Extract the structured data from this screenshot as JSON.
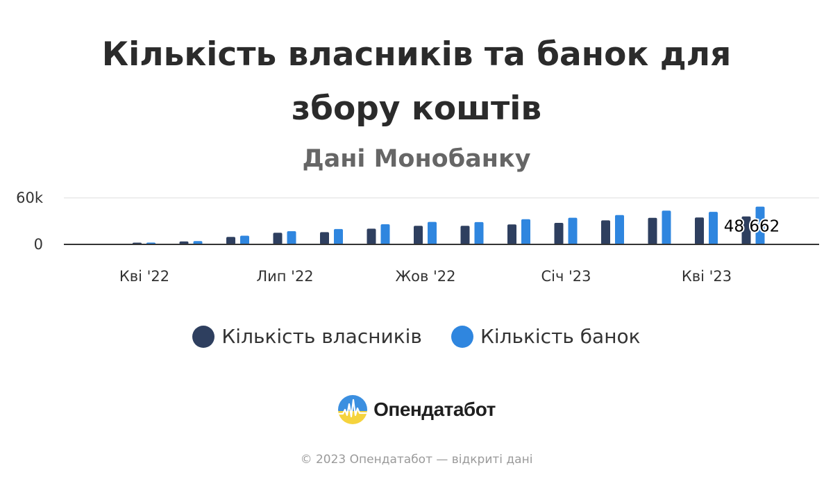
{
  "header": {
    "title_line1": "Кількість власників та банок для",
    "title_line2": "збору коштів",
    "subtitle": "Дані Монобанку"
  },
  "chart_data": {
    "type": "bar",
    "title": "Кількість власників та банок для збору коштів",
    "subtitle": "Дані Монобанку",
    "xlabel": "",
    "ylabel": "",
    "ylim": [
      0,
      60000
    ],
    "yticks": [
      {
        "value": 0,
        "label": "0"
      },
      {
        "value": 60000,
        "label": "60k"
      }
    ],
    "xticks": [
      {
        "index": 1,
        "label": "Кві '22"
      },
      {
        "index": 4,
        "label": "Лип '22"
      },
      {
        "index": 7,
        "label": "Жов '22"
      },
      {
        "index": 10,
        "label": "Січ '23"
      },
      {
        "index": 13,
        "label": "Кві '23"
      }
    ],
    "categories_count": 15,
    "grid": true,
    "legend_position": "bottom",
    "series": [
      {
        "name": "Кількість власників",
        "color": "#2e3f5f",
        "values": [
          null,
          2200,
          3800,
          9600,
          15000,
          15800,
          20300,
          24000,
          24000,
          25800,
          27800,
          31000,
          34300,
          34700,
          36000
        ]
      },
      {
        "name": "Кількість банок",
        "color": "#2f86df",
        "values": [
          null,
          2400,
          4200,
          11200,
          17000,
          19800,
          26000,
          29000,
          28800,
          32500,
          34400,
          37800,
          43500,
          42000,
          48662
        ]
      }
    ],
    "data_labels": [
      {
        "series": 1,
        "index": 14,
        "label": "48 662"
      }
    ]
  },
  "legend": {
    "items": [
      {
        "label": "Кількість власників",
        "color": "#2e3f5f"
      },
      {
        "label": "Кількість банок",
        "color": "#2f86df"
      }
    ]
  },
  "brand": {
    "name": "Опендатабот",
    "icon": "opendatabot-logo-icon"
  },
  "footer": {
    "text": "© 2023 Опендатабот — відкриті дані"
  }
}
